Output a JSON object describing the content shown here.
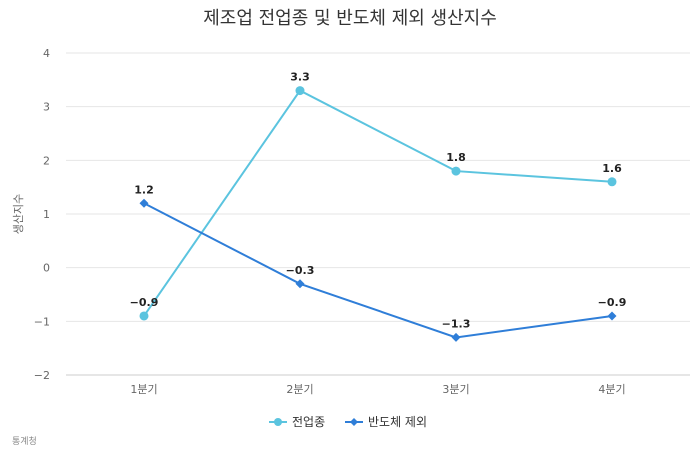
{
  "chart_data": {
    "type": "line",
    "title": "제조업 전업종 및 반도체 제외 생산지수",
    "ylabel": "생산지수",
    "xlabel": "",
    "categories": [
      "1분기",
      "2분기",
      "3분기",
      "4분기"
    ],
    "ylim": [
      -2,
      4
    ],
    "yticks": [
      4,
      3,
      2,
      1,
      0,
      -1,
      -2
    ],
    "ytick_labels": [
      "4",
      "3",
      "2",
      "1",
      "0",
      "−1",
      "−2"
    ],
    "grid": true,
    "legend": "bottom",
    "series": [
      {
        "name": "전업종",
        "values": [
          -0.9,
          3.3,
          1.8,
          1.6
        ],
        "labels": [
          "−0.9",
          "3.3",
          "1.8",
          "1.6"
        ],
        "color": "#5bc4df",
        "marker": "circle"
      },
      {
        "name": "반도체 제외",
        "values": [
          1.2,
          -0.3,
          -1.3,
          -0.9
        ],
        "labels": [
          "1.2",
          "−0.3",
          "−1.3",
          "−0.9"
        ],
        "color": "#2f7ed8",
        "marker": "diamond"
      }
    ]
  },
  "source": "통계청"
}
